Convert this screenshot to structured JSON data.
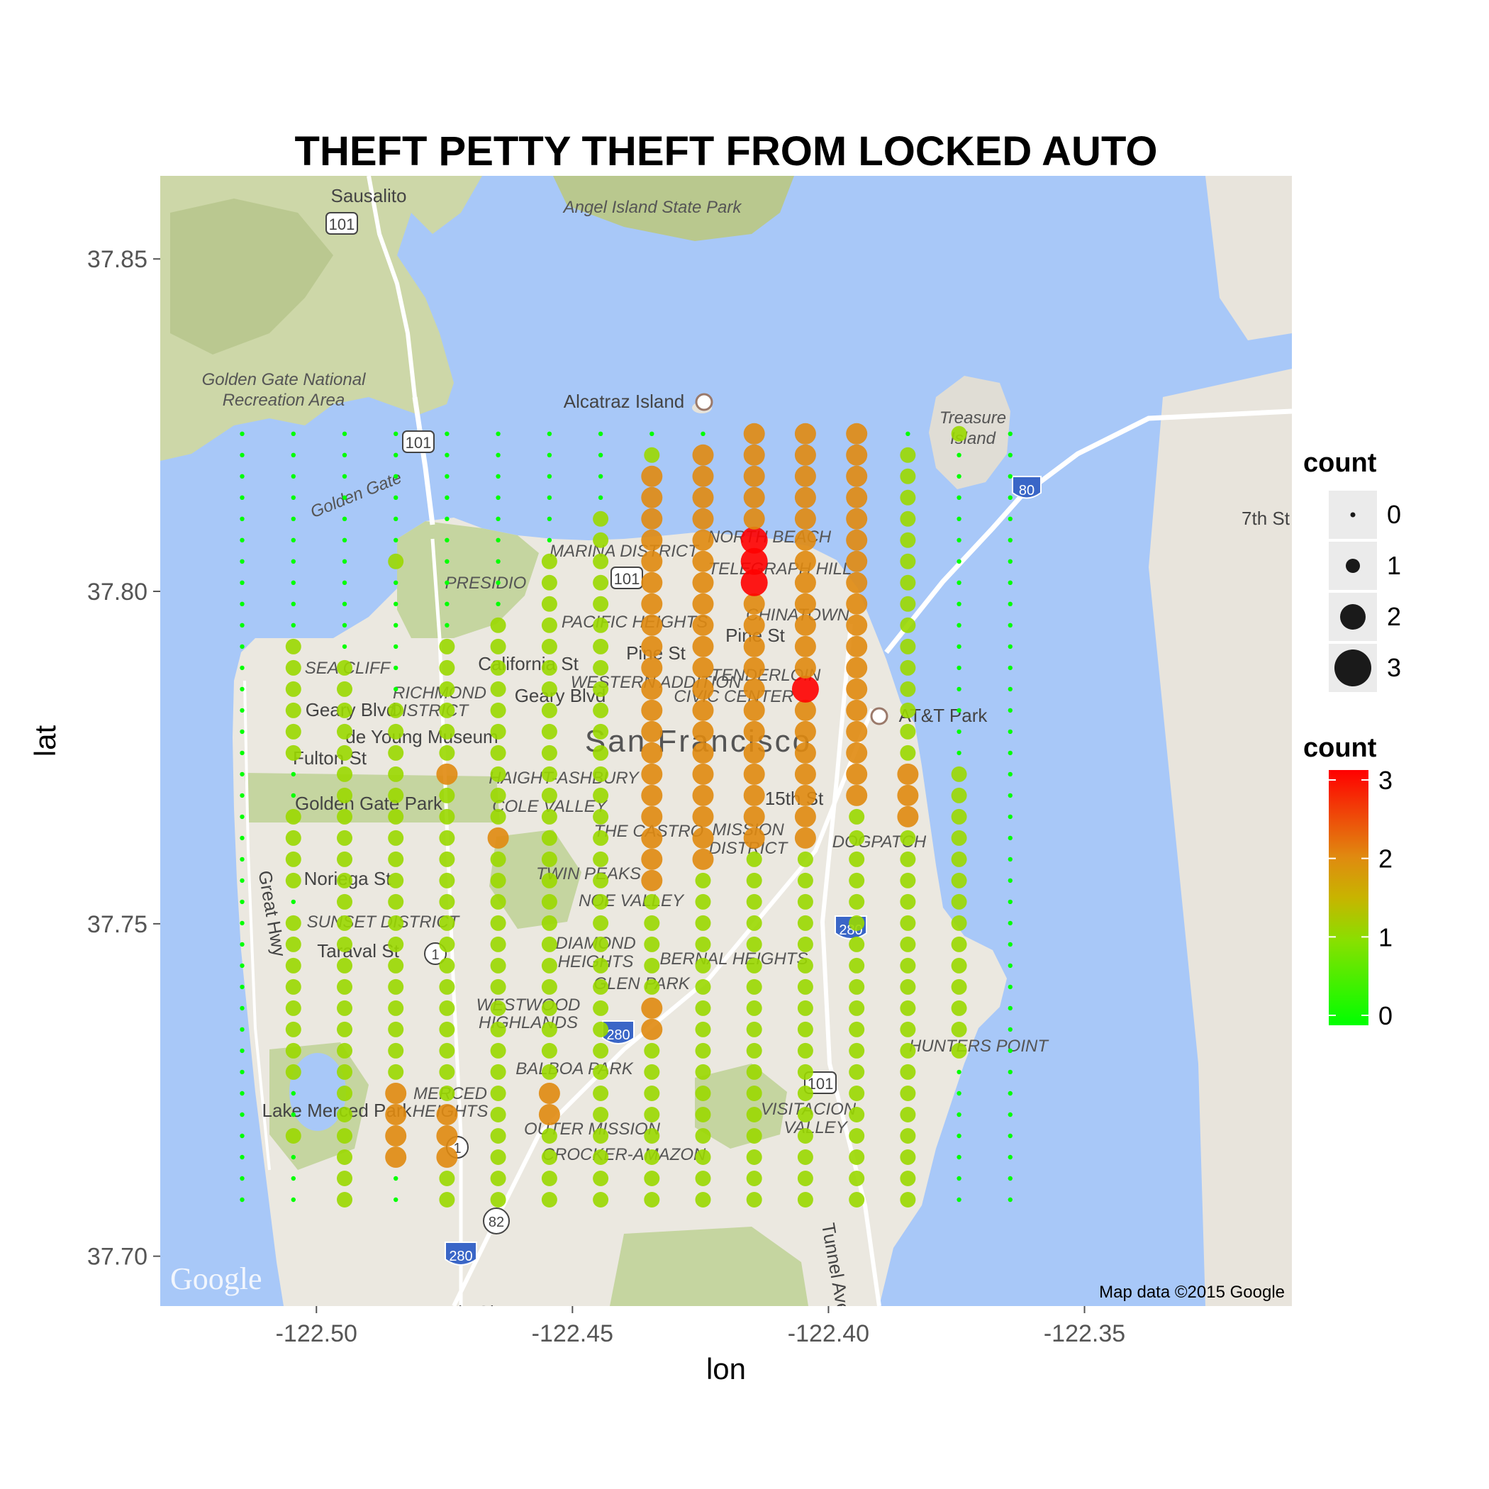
{
  "chart_data": {
    "type": "scatter",
    "title": "THEFT PETTY THEFT FROM LOCKED AUTO",
    "xlabel": "lon",
    "ylabel": "lat",
    "xlim": [
      -122.5305,
      -122.3095
    ],
    "ylim": [
      37.6925,
      37.8625
    ],
    "x_ticks": [
      -122.5,
      -122.45,
      -122.4,
      -122.35
    ],
    "x_tick_labels": [
      "-122.50",
      "-122.45",
      "-122.40",
      "-122.35"
    ],
    "y_ticks": [
      37.7,
      37.75,
      37.8,
      37.85
    ],
    "y_tick_labels": [
      "37.70",
      "37.75",
      "37.80",
      "37.85"
    ],
    "grid_lon": [
      -122.5145,
      -122.5045,
      -122.4945,
      -122.4845,
      -122.4745,
      -122.4645,
      -122.4545,
      -122.4445,
      -122.4345,
      -122.4245,
      -122.4145,
      -122.4045,
      -122.3945,
      -122.3845,
      -122.3745,
      -122.3645
    ],
    "grid_lat_start": 37.7085,
    "grid_lat_step": 0.0032,
    "grid_lat_count": 37,
    "count_grid": [
      [
        0,
        0,
        0,
        0,
        0,
        0,
        0,
        0,
        0,
        0,
        0,
        0,
        0,
        0,
        0,
        0,
        0,
        0,
        0,
        0,
        0,
        0,
        0,
        0,
        0,
        0,
        0,
        0,
        0,
        0,
        0,
        0,
        0,
        0,
        0,
        0,
        0
      ],
      [
        0,
        0,
        0,
        1,
        0,
        0,
        1,
        1,
        1,
        1,
        1,
        1,
        1,
        1,
        0,
        1,
        1,
        1,
        1,
        0,
        0,
        1,
        1,
        1,
        1,
        1,
        1,
        0,
        0,
        0,
        0,
        0,
        0,
        0,
        0,
        0,
        0
      ],
      [
        1,
        1,
        1,
        1,
        1,
        1,
        1,
        1,
        1,
        1,
        1,
        1,
        1,
        1,
        1,
        1,
        1,
        1,
        1,
        1,
        1,
        1,
        1,
        1,
        1,
        1,
        0,
        0,
        0,
        0,
        0,
        0,
        0,
        0,
        0,
        0,
        0
      ],
      [
        0,
        0,
        2,
        2,
        2,
        2,
        1,
        1,
        1,
        1,
        1,
        1,
        1,
        1,
        1,
        1,
        1,
        1,
        1,
        1,
        1,
        1,
        1,
        1,
        0,
        0,
        0,
        0,
        0,
        0,
        1,
        0,
        0,
        0,
        0,
        0,
        0
      ],
      [
        1,
        1,
        2,
        2,
        2,
        1,
        1,
        1,
        1,
        1,
        1,
        1,
        1,
        1,
        1,
        1,
        1,
        1,
        1,
        1,
        2,
        1,
        1,
        1,
        1,
        1,
        1,
        0,
        0,
        0,
        0,
        0,
        0,
        0,
        0,
        0,
        0
      ],
      [
        1,
        1,
        1,
        1,
        1,
        1,
        1,
        1,
        1,
        1,
        1,
        1,
        1,
        1,
        1,
        1,
        1,
        2,
        1,
        1,
        1,
        1,
        1,
        1,
        1,
        1,
        1,
        1,
        0,
        0,
        0,
        0,
        0,
        0,
        0,
        0,
        0
      ],
      [
        1,
        1,
        1,
        1,
        2,
        2,
        1,
        1,
        1,
        1,
        1,
        1,
        1,
        1,
        1,
        1,
        1,
        1,
        1,
        1,
        1,
        1,
        1,
        1,
        1,
        1,
        1,
        1,
        1,
        1,
        1,
        0,
        0,
        0,
        0,
        0,
        0
      ],
      [
        1,
        1,
        1,
        1,
        1,
        1,
        1,
        1,
        1,
        1,
        1,
        1,
        1,
        1,
        1,
        1,
        1,
        1,
        1,
        1,
        1,
        1,
        1,
        1,
        1,
        1,
        1,
        1,
        1,
        1,
        1,
        1,
        1,
        0,
        0,
        0,
        0
      ],
      [
        1,
        1,
        1,
        1,
        1,
        1,
        1,
        1,
        2,
        2,
        1,
        1,
        1,
        1,
        1,
        2,
        2,
        2,
        2,
        2,
        2,
        2,
        2,
        2,
        2,
        2,
        2,
        2,
        2,
        2,
        2,
        2,
        2,
        2,
        2,
        1,
        0
      ],
      [
        1,
        1,
        1,
        1,
        1,
        1,
        1,
        1,
        1,
        1,
        1,
        1,
        1,
        1,
        1,
        1,
        2,
        2,
        2,
        2,
        2,
        2,
        2,
        2,
        2,
        2,
        2,
        2,
        2,
        2,
        2,
        2,
        2,
        2,
        2,
        2,
        0
      ],
      [
        1,
        1,
        1,
        1,
        1,
        1,
        1,
        1,
        1,
        1,
        1,
        1,
        1,
        1,
        1,
        1,
        1,
        2,
        2,
        2,
        2,
        2,
        2,
        2,
        2,
        2,
        2,
        2,
        2,
        3,
        3,
        3,
        2,
        2,
        2,
        2,
        2
      ],
      [
        1,
        1,
        1,
        1,
        1,
        1,
        1,
        1,
        1,
        1,
        1,
        1,
        1,
        1,
        1,
        1,
        1,
        2,
        2,
        2,
        2,
        2,
        2,
        2,
        3,
        2,
        2,
        2,
        2,
        2,
        2,
        2,
        2,
        2,
        2,
        2,
        2
      ],
      [
        1,
        1,
        1,
        1,
        1,
        1,
        1,
        1,
        1,
        1,
        1,
        1,
        1,
        1,
        1,
        1,
        1,
        1,
        1,
        2,
        2,
        2,
        2,
        2,
        2,
        2,
        2,
        2,
        2,
        2,
        2,
        2,
        2,
        2,
        2,
        2,
        2
      ],
      [
        1,
        1,
        1,
        1,
        1,
        1,
        1,
        1,
        1,
        1,
        1,
        1,
        1,
        1,
        1,
        1,
        1,
        1,
        2,
        2,
        2,
        1,
        1,
        1,
        1,
        1,
        1,
        1,
        1,
        1,
        1,
        1,
        1,
        1,
        1,
        1,
        0
      ],
      [
        0,
        0,
        0,
        0,
        0,
        0,
        0,
        1,
        1,
        1,
        1,
        1,
        1,
        1,
        1,
        1,
        1,
        1,
        1,
        1,
        1,
        0,
        0,
        0,
        0,
        0,
        0,
        0,
        0,
        0,
        0,
        0,
        0,
        0,
        0,
        0,
        1
      ],
      [
        0,
        0,
        0,
        0,
        0,
        0,
        0,
        0,
        0,
        0,
        0,
        0,
        0,
        0,
        0,
        0,
        0,
        0,
        0,
        0,
        0,
        0,
        0,
        0,
        0,
        0,
        0,
        0,
        0,
        0,
        0,
        0,
        0,
        0,
        0,
        0,
        0
      ]
    ],
    "legend_size": {
      "title": "count",
      "labels": [
        "0",
        "1",
        "2",
        "3"
      ],
      "values": [
        0,
        1,
        2,
        3
      ]
    },
    "legend_color": {
      "title": "count",
      "labels": [
        "0",
        "1",
        "2",
        "3"
      ],
      "values": [
        0,
        1,
        2,
        3
      ],
      "low": "#00ff00",
      "mid": "#c8b400",
      "high": "#ff0000"
    },
    "legend_position": "right"
  },
  "map": {
    "labels": {
      "sausalito": "Sausalito",
      "angel_island": "Angel Island State Park",
      "ggnra1": "Golden Gate National",
      "ggnra2": "Recreation Area",
      "alcatraz": "Alcatraz Island",
      "treasure1": "Treasure",
      "treasure2": "Island",
      "golden_gate": "Golden Gate",
      "marina": "MARINA DISTRICT",
      "north_beach": "NORTH BEACH",
      "telegraph": "TELEGRAPH HILL",
      "presidio": "PRESIDIO",
      "pacific_heights": "PACIFIC HEIGHTS",
      "chinatown": "CHINATOWN",
      "sea_cliff": "SEA CLIFF",
      "richmond1": "RICHMOND",
      "richmond2": "DISTRICT",
      "california_st": "California St",
      "geary_blvd": "Geary Blvd",
      "de_young": "de Young Museum",
      "fulton_st": "Fulton St",
      "att_park": "AT&T Park",
      "san_francisco": "San Francisco",
      "haight": "HAIGHT-ASHBURY",
      "golden_gate_park": "Golden Gate Park",
      "mission1": "MISSION",
      "mission2": "DISTRICT",
      "dogpatch": "DOGPATCH",
      "noriega": "Noriega St",
      "twin_peaks": "TWIN PEAKS",
      "noe_valley": "NOE VALLEY",
      "great_hwy": "Great Hwy",
      "sunset": "SUNSET DISTRICT",
      "taraval": "Taraval St",
      "diamond1": "DIAMOND",
      "diamond2": "HEIGHTS",
      "bernal": "BERNAL HEIGHTS",
      "glen_park": "GLEN PARK",
      "westwood1": "WESTWOOD",
      "westwood2": "HIGHLANDS",
      "hunters_point": "HUNTERS POINT",
      "balboa": "BALBOA PARK",
      "merced1": "MERCED",
      "merced2": "HEIGHTS",
      "lake_merced": "Lake Merced Park",
      "visitacion1": "VISITACION",
      "visitacion2": "VALLEY",
      "outer_mission": "OUTER MISSION",
      "crocker": "CROCKER-AMAZON",
      "tunnel_ave": "Tunnel Ave",
      "daly_city": "Daly City",
      "seventh_st": "7th St",
      "pine_st": "Pine St",
      "pine_st2": "Pine St",
      "geary_blvd2": "Geary Blvd",
      "western_addition": "WESTERN ADDITION",
      "tenderloin": "TENDERLOIN",
      "civic_center": "CIVIC CENTER",
      "the_castro": "THE CASTRO",
      "cole_valley": "COLE VALLEY",
      "fifteenth": "15th St"
    },
    "shields": {
      "us101_a": "101",
      "us101_b": "101",
      "us101_c": "101",
      "us101_d": "101",
      "i80": "80",
      "i280_a": "280",
      "i280_b": "280",
      "i280_c": "280",
      "ca1_a": "1",
      "ca1_b": "1",
      "ca82": "82"
    },
    "google_logo": "Google",
    "attribution": "Map data ©2015 Google"
  }
}
